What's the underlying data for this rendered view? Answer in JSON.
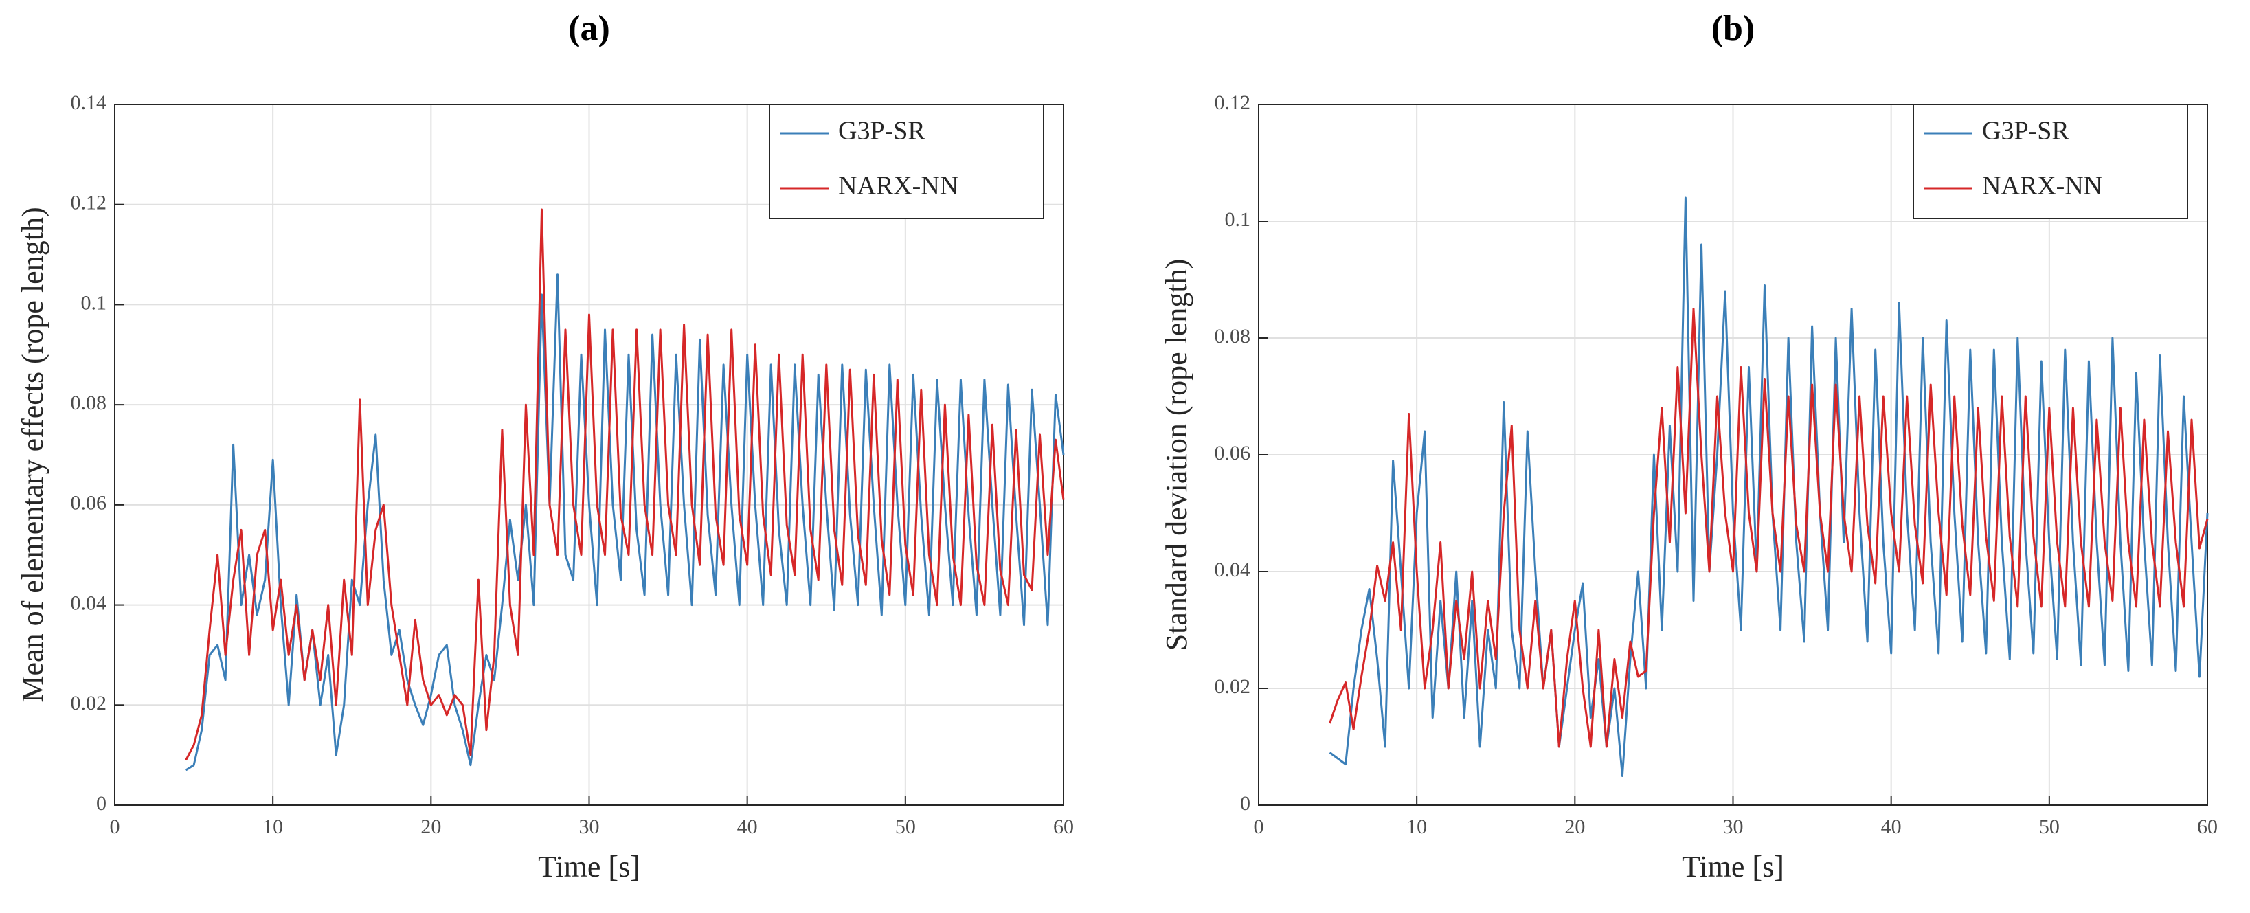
{
  "chart_data": [
    {
      "type": "line",
      "title": "(a)",
      "xlabel": "Time [s]",
      "ylabel": "Mean of elementary effects (rope length)",
      "xlim": [
        0,
        60
      ],
      "xticks": [
        0,
        10,
        20,
        30,
        40,
        50,
        60
      ],
      "ylim": [
        0,
        0.14
      ],
      "yticks": [
        0,
        0.02,
        0.04,
        0.06,
        0.08,
        0.1,
        0.12,
        0.14
      ],
      "grid": true,
      "legend": "upper right",
      "x": [
        4.5,
        5,
        5.5,
        6,
        6.5,
        7,
        7.5,
        8,
        8.5,
        9,
        9.5,
        10,
        10.5,
        11,
        11.5,
        12,
        12.5,
        13,
        13.5,
        14,
        14.5,
        15,
        15.5,
        16,
        16.5,
        17,
        17.5,
        18,
        18.5,
        19,
        19.5,
        20,
        20.5,
        21,
        21.5,
        22,
        22.5,
        23,
        23.5,
        24,
        24.5,
        25,
        25.5,
        26,
        26.5,
        27,
        27.5,
        28,
        28.5,
        29,
        29.5,
        30,
        30.5,
        31,
        31.5,
        32,
        32.5,
        33,
        33.5,
        34,
        34.5,
        35,
        35.5,
        36,
        36.5,
        37,
        37.5,
        38,
        38.5,
        39,
        39.5,
        40,
        40.5,
        41,
        41.5,
        42,
        42.5,
        43,
        43.5,
        44,
        44.5,
        45,
        45.5,
        46,
        46.5,
        47,
        47.5,
        48,
        48.5,
        49,
        49.5,
        50,
        50.5,
        51,
        51.5,
        52,
        52.5,
        53,
        53.5,
        54,
        54.5,
        55,
        55.5,
        56,
        56.5,
        57,
        57.5,
        58,
        58.5,
        59,
        59.5,
        60
      ],
      "series": [
        {
          "name": "G3P-SR",
          "color": "#3b7fb8",
          "values": [
            0.007,
            0.008,
            0.015,
            0.03,
            0.032,
            0.025,
            0.072,
            0.04,
            0.05,
            0.038,
            0.045,
            0.069,
            0.04,
            0.02,
            0.042,
            0.025,
            0.035,
            0.02,
            0.03,
            0.01,
            0.02,
            0.045,
            0.04,
            0.06,
            0.074,
            0.045,
            0.03,
            0.035,
            0.025,
            0.02,
            0.016,
            0.022,
            0.03,
            0.032,
            0.02,
            0.015,
            0.008,
            0.02,
            0.03,
            0.025,
            0.04,
            0.057,
            0.045,
            0.06,
            0.04,
            0.102,
            0.06,
            0.106,
            0.05,
            0.045,
            0.09,
            0.06,
            0.04,
            0.095,
            0.06,
            0.045,
            0.09,
            0.055,
            0.042,
            0.094,
            0.06,
            0.042,
            0.09,
            0.06,
            0.04,
            0.093,
            0.058,
            0.042,
            0.088,
            0.06,
            0.04,
            0.09,
            0.06,
            0.04,
            0.088,
            0.055,
            0.04,
            0.088,
            0.06,
            0.04,
            0.086,
            0.06,
            0.039,
            0.088,
            0.058,
            0.04,
            0.087,
            0.06,
            0.038,
            0.088,
            0.06,
            0.04,
            0.086,
            0.058,
            0.038,
            0.085,
            0.06,
            0.04,
            0.085,
            0.058,
            0.038,
            0.085,
            0.06,
            0.038,
            0.084,
            0.058,
            0.036,
            0.083,
            0.06,
            0.036,
            0.082,
            0.07
          ]
        },
        {
          "name": "NARX-NN",
          "color": "#d62728",
          "values": [
            0.009,
            0.012,
            0.018,
            0.035,
            0.05,
            0.03,
            0.045,
            0.055,
            0.03,
            0.05,
            0.055,
            0.035,
            0.045,
            0.03,
            0.04,
            0.025,
            0.035,
            0.025,
            0.04,
            0.02,
            0.045,
            0.03,
            0.081,
            0.04,
            0.055,
            0.06,
            0.04,
            0.03,
            0.02,
            0.037,
            0.025,
            0.02,
            0.022,
            0.018,
            0.022,
            0.02,
            0.01,
            0.045,
            0.015,
            0.03,
            0.075,
            0.04,
            0.03,
            0.08,
            0.05,
            0.119,
            0.06,
            0.05,
            0.095,
            0.06,
            0.05,
            0.098,
            0.06,
            0.05,
            0.095,
            0.058,
            0.05,
            0.095,
            0.06,
            0.05,
            0.095,
            0.06,
            0.05,
            0.096,
            0.06,
            0.048,
            0.094,
            0.058,
            0.048,
            0.095,
            0.058,
            0.048,
            0.092,
            0.058,
            0.046,
            0.09,
            0.056,
            0.046,
            0.09,
            0.055,
            0.045,
            0.088,
            0.055,
            0.044,
            0.087,
            0.054,
            0.044,
            0.086,
            0.053,
            0.042,
            0.085,
            0.052,
            0.042,
            0.083,
            0.05,
            0.04,
            0.08,
            0.05,
            0.04,
            0.078,
            0.048,
            0.04,
            0.076,
            0.047,
            0.04,
            0.075,
            0.046,
            0.043,
            0.074,
            0.05,
            0.073,
            0.061
          ]
        }
      ]
    },
    {
      "type": "line",
      "title": "(b)",
      "xlabel": "Time [s]",
      "ylabel": "Standard deviation (rope length)",
      "xlim": [
        0,
        60
      ],
      "xticks": [
        0,
        10,
        20,
        30,
        40,
        50,
        60
      ],
      "ylim": [
        0,
        0.12
      ],
      "yticks": [
        0,
        0.02,
        0.04,
        0.06,
        0.08,
        0.1,
        0.12
      ],
      "grid": true,
      "legend": "upper right",
      "x": [
        4.5,
        5,
        5.5,
        6,
        6.5,
        7,
        7.5,
        8,
        8.5,
        9,
        9.5,
        10,
        10.5,
        11,
        11.5,
        12,
        12.5,
        13,
        13.5,
        14,
        14.5,
        15,
        15.5,
        16,
        16.5,
        17,
        17.5,
        18,
        18.5,
        19,
        19.5,
        20,
        20.5,
        21,
        21.5,
        22,
        22.5,
        23,
        23.5,
        24,
        24.5,
        25,
        25.5,
        26,
        26.5,
        27,
        27.5,
        28,
        28.5,
        29,
        29.5,
        30,
        30.5,
        31,
        31.5,
        32,
        32.5,
        33,
        33.5,
        34,
        34.5,
        35,
        35.5,
        36,
        36.5,
        37,
        37.5,
        38,
        38.5,
        39,
        39.5,
        40,
        40.5,
        41,
        41.5,
        42,
        42.5,
        43,
        43.5,
        44,
        44.5,
        45,
        45.5,
        46,
        46.5,
        47,
        47.5,
        48,
        48.5,
        49,
        49.5,
        50,
        50.5,
        51,
        51.5,
        52,
        52.5,
        53,
        53.5,
        54,
        54.5,
        55,
        55.5,
        56,
        56.5,
        57,
        57.5,
        58,
        58.5,
        59,
        59.5,
        60
      ],
      "series": [
        {
          "name": "G3P-SR",
          "color": "#3b7fb8",
          "values": [
            0.009,
            0.008,
            0.007,
            0.02,
            0.03,
            0.037,
            0.025,
            0.01,
            0.059,
            0.04,
            0.02,
            0.05,
            0.064,
            0.015,
            0.035,
            0.02,
            0.04,
            0.015,
            0.035,
            0.01,
            0.03,
            0.02,
            0.069,
            0.03,
            0.02,
            0.064,
            0.04,
            0.02,
            0.03,
            0.01,
            0.02,
            0.03,
            0.038,
            0.015,
            0.025,
            0.01,
            0.02,
            0.005,
            0.025,
            0.04,
            0.02,
            0.06,
            0.03,
            0.065,
            0.04,
            0.104,
            0.035,
            0.096,
            0.04,
            0.06,
            0.088,
            0.05,
            0.03,
            0.075,
            0.04,
            0.089,
            0.05,
            0.03,
            0.08,
            0.045,
            0.028,
            0.082,
            0.05,
            0.03,
            0.08,
            0.045,
            0.085,
            0.05,
            0.028,
            0.078,
            0.045,
            0.026,
            0.086,
            0.05,
            0.03,
            0.08,
            0.045,
            0.026,
            0.083,
            0.05,
            0.028,
            0.078,
            0.045,
            0.026,
            0.078,
            0.045,
            0.025,
            0.08,
            0.045,
            0.026,
            0.076,
            0.045,
            0.025,
            0.078,
            0.045,
            0.024,
            0.076,
            0.045,
            0.024,
            0.08,
            0.045,
            0.023,
            0.074,
            0.045,
            0.024,
            0.077,
            0.045,
            0.023,
            0.07,
            0.045,
            0.022,
            0.05
          ]
        },
        {
          "name": "NARX-NN",
          "color": "#d62728",
          "values": [
            0.014,
            0.018,
            0.021,
            0.013,
            0.022,
            0.03,
            0.041,
            0.035,
            0.045,
            0.03,
            0.067,
            0.04,
            0.02,
            0.03,
            0.045,
            0.02,
            0.035,
            0.025,
            0.04,
            0.02,
            0.035,
            0.025,
            0.05,
            0.065,
            0.03,
            0.02,
            0.035,
            0.02,
            0.03,
            0.01,
            0.025,
            0.035,
            0.02,
            0.01,
            0.03,
            0.01,
            0.025,
            0.015,
            0.028,
            0.022,
            0.023,
            0.05,
            0.068,
            0.045,
            0.075,
            0.05,
            0.085,
            0.06,
            0.04,
            0.07,
            0.05,
            0.04,
            0.075,
            0.05,
            0.04,
            0.073,
            0.05,
            0.04,
            0.07,
            0.048,
            0.04,
            0.072,
            0.05,
            0.04,
            0.072,
            0.05,
            0.04,
            0.07,
            0.048,
            0.038,
            0.07,
            0.05,
            0.04,
            0.07,
            0.048,
            0.038,
            0.072,
            0.05,
            0.036,
            0.07,
            0.048,
            0.036,
            0.068,
            0.046,
            0.035,
            0.07,
            0.046,
            0.034,
            0.07,
            0.046,
            0.034,
            0.068,
            0.045,
            0.034,
            0.068,
            0.045,
            0.034,
            0.066,
            0.045,
            0.035,
            0.068,
            0.045,
            0.034,
            0.066,
            0.045,
            0.034,
            0.064,
            0.045,
            0.034,
            0.066,
            0.044,
            0.049
          ]
        }
      ]
    }
  ]
}
